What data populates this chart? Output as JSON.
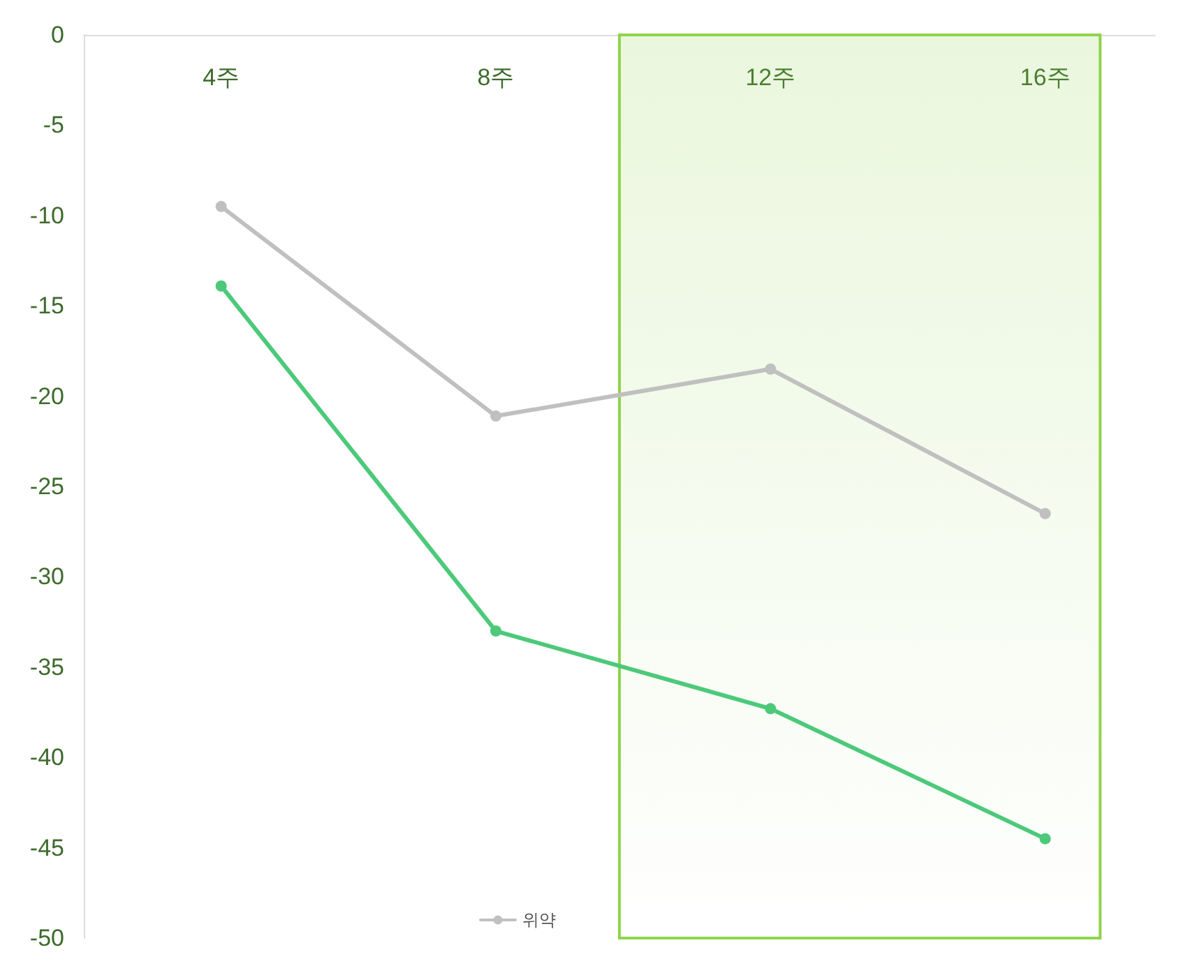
{
  "chart_data": {
    "type": "line",
    "x": [
      4,
      8,
      12,
      16
    ],
    "xlim": [
      2,
      17.6
    ],
    "xticks": [
      {
        "value": 4,
        "label": "4주"
      },
      {
        "value": 8,
        "label": "8주"
      },
      {
        "value": 12,
        "label": "12주"
      },
      {
        "value": 16,
        "label": "16주"
      }
    ],
    "ylim": [
      -50,
      0
    ],
    "yticks": [
      -50,
      -45,
      -40,
      -35,
      -30,
      -25,
      -20,
      -15,
      -10,
      -5,
      0
    ],
    "series": [
      {
        "color": "#4cc97a",
        "values": [
          -13.9,
          -33,
          -37.3,
          -44.5
        ]
      },
      {
        "name": "위약",
        "color": "#c0c0c0",
        "values": [
          -9.5,
          -21.1,
          -18.5,
          -26.5
        ]
      }
    ],
    "bands": [
      {
        "axis": "x",
        "from": 9.8,
        "to": 16.8,
        "color": "#8fd44a"
      }
    ],
    "marker": "circle",
    "legend": "bottom",
    "grid": false
  }
}
